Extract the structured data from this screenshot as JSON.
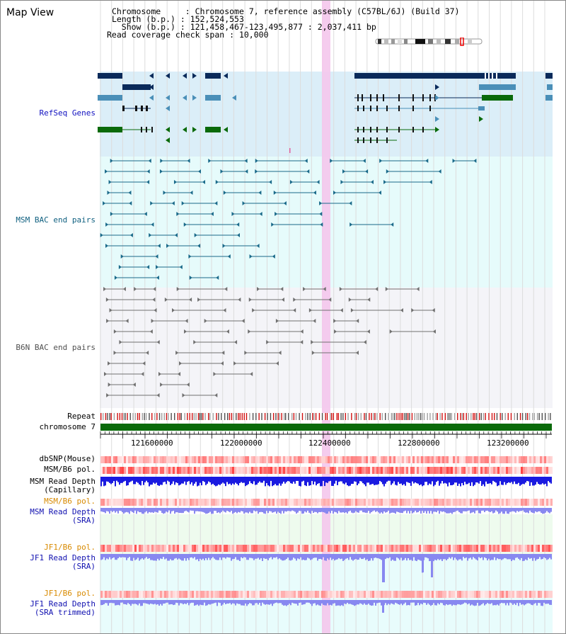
{
  "title": "Map View",
  "header": {
    "chromosome_key": "Chromosome",
    "chromosome_val": "Chromosome 7, reference assembly (C57BL/6J) (Build 37)",
    "length_key": "Length (b.p.)",
    "length_val": "152,524,553",
    "show_key": "Show (b.p.)",
    "show_val": "121,458,467-123,495,877 : 2,037,411 bp",
    "coverage_key": "Read coverage check span",
    "coverage_val": "10,000"
  },
  "tracks": {
    "refseq": "RefSeq Genes",
    "msm_bac": "MSM BAC end pairs",
    "b6n_bac": "B6N BAC end pairs",
    "repeat": "Repeat",
    "chromosome": "chromosome 7",
    "dbsnp": "dbSNP(Mouse)",
    "msm_b6_pol": "MSM/B6 pol.",
    "msm_read_depth_cap_1": "MSM Read Depth",
    "msm_read_depth_cap_2": "(Capillary)",
    "msm_b6_pol_2": "MSM/B6 pol.",
    "msm_read_depth_sra_1": "MSM Read Depth",
    "msm_read_depth_sra_2": "(SRA)",
    "jf1_b6_pol": "JF1/B6 pol.",
    "jf1_read_depth_sra_1": "JF1 Read Depth",
    "jf1_read_depth_sra_2": "(SRA)",
    "jf1_b6_pol_2": "JF1/B6 pol.",
    "jf1_read_depth_trim_1": "JF1 Read Depth",
    "jf1_read_depth_trim_2": "(SRA trimmed)"
  },
  "axis": {
    "ticks": [
      "121600000",
      "122000000",
      "122400000",
      "122800000",
      "123200000"
    ]
  },
  "colors": {
    "gene_bg": "#dbeef8",
    "msm_bg": "#e6fbfb",
    "b6n_bg": "#f4f4f8",
    "navy": "#0a2a5a",
    "steel": "#4a8fb8",
    "green": "#0a6a0a",
    "msm_line": "#1a6a8a",
    "b6n_line": "#707070",
    "highlight": "#f4c6ec",
    "chrom": "#0a6a0a",
    "depth_cap": "#1a1ae0",
    "depth_sra": "#8888f0"
  }
}
